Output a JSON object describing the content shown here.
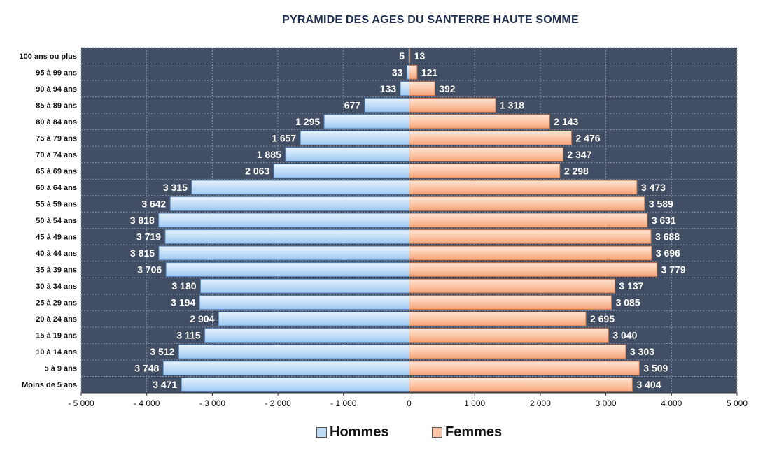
{
  "chart_data": {
    "type": "bar",
    "orientation": "horizontal-population-pyramid",
    "title": "PYRAMIDE DES AGES DU SANTERRE HAUTE SOMME",
    "categories": [
      "100 ans ou plus",
      "95 à 99 ans",
      "90 à 94 ans",
      "85 à 89 ans",
      "80 à 84 ans",
      "75 à 79 ans",
      "70 à 74 ans",
      "65 à 69 ans",
      "60 à 64 ans",
      "55 à 59 ans",
      "50 à 54 ans",
      "45 à 49 ans",
      "40 à 44 ans",
      "35 à 39 ans",
      "30 à 34 ans",
      "25 à 29 ans",
      "20 à 24 ans",
      "15 à 19 ans",
      "10 à 14 ans",
      "5 à 9 ans",
      "Moins de 5 ans"
    ],
    "series": [
      {
        "name": "Hommes",
        "color": "#bfdcf7",
        "values": [
          -5,
          -33,
          -133,
          -677,
          -1295,
          -1657,
          -1885,
          -2063,
          -3315,
          -3642,
          -3818,
          -3719,
          -3815,
          -3706,
          -3180,
          -3194,
          -2904,
          -3115,
          -3512,
          -3748,
          -3471
        ],
        "labels": [
          "5",
          "33",
          "133",
          "677",
          "1 295",
          "1 657",
          "1 885",
          "2 063",
          "3 315",
          "3 642",
          "3 818",
          "3 719",
          "3 815",
          "3 706",
          "3 180",
          "3 194",
          "2 904",
          "3 115",
          "3 512",
          "3 748",
          "3 471"
        ]
      },
      {
        "name": "Femmes",
        "color": "#fbc6a8",
        "values": [
          13,
          121,
          392,
          1318,
          2143,
          2476,
          2347,
          2298,
          3473,
          3589,
          3631,
          3688,
          3696,
          3779,
          3137,
          3085,
          2695,
          3040,
          3303,
          3509,
          3404
        ],
        "labels": [
          "13",
          "121",
          "392",
          "1 318",
          "2 143",
          "2 476",
          "2 347",
          "2 298",
          "3 473",
          "3 589",
          "3 631",
          "3 688",
          "3 696",
          "3 779",
          "3 137",
          "3 085",
          "2 695",
          "3 040",
          "3 303",
          "3 509",
          "3 404"
        ]
      }
    ],
    "xlim": [
      -5000,
      5000
    ],
    "xticks": [
      -5000,
      -4000,
      -3000,
      -2000,
      -1000,
      0,
      1000,
      2000,
      3000,
      4000,
      5000
    ],
    "xtick_labels": [
      "- 5 000",
      "- 4 000",
      "- 3 000",
      "- 2 000",
      "- 1 000",
      "0",
      "1 000",
      "2 000",
      "3 000",
      "4 000",
      "5 000"
    ],
    "plot_background": "#424e64",
    "grid": true,
    "legend": "bottom-center"
  }
}
